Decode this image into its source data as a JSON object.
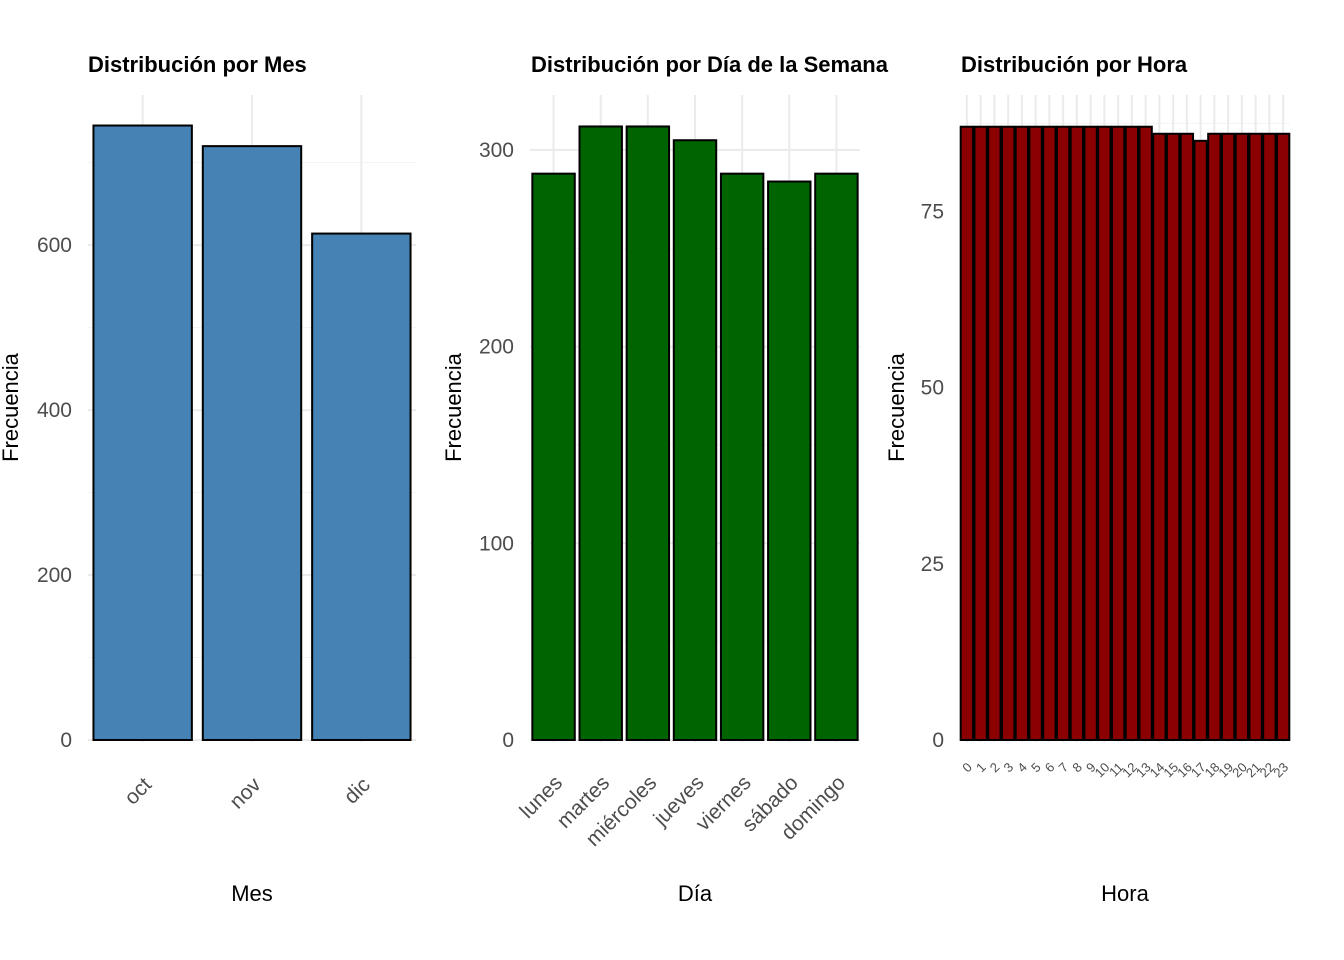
{
  "chart_data": [
    {
      "type": "bar",
      "title": "Distribución por Mes",
      "xlabel": "Mes",
      "ylabel": "Frecuencia",
      "categories": [
        "oct",
        "nov",
        "dic"
      ],
      "values": [
        745,
        720,
        614
      ],
      "ylim": [
        0,
        782
      ],
      "yticks": [
        0,
        200,
        400,
        600
      ],
      "ytick_labels": [
        "0",
        "200",
        "400",
        "600"
      ],
      "bar_color": "#4682B4",
      "x_label_rotation": "45",
      "grid": true,
      "legend": "none"
    },
    {
      "type": "bar",
      "title": "Distribución por Día de la Semana",
      "xlabel": "Día",
      "ylabel": "Frecuencia",
      "categories": [
        "lunes",
        "martes",
        "miércoles",
        "jueves",
        "viernes",
        "sábado",
        "domingo"
      ],
      "values": [
        288,
        312,
        312,
        305,
        288,
        284,
        288
      ],
      "ylim": [
        0,
        328
      ],
      "yticks": [
        0,
        100,
        200,
        300
      ],
      "ytick_labels": [
        "0",
        "100",
        "200",
        "300"
      ],
      "bar_color": "#006400",
      "x_label_rotation": "45",
      "grid": true,
      "legend": "none"
    },
    {
      "type": "bar",
      "title": "Distribución por Hora",
      "xlabel": "Hora",
      "ylabel": "Frecuencia",
      "categories": [
        "0",
        "1",
        "2",
        "3",
        "4",
        "5",
        "6",
        "7",
        "8",
        "9",
        "10",
        "11",
        "12",
        "13",
        "14",
        "15",
        "16",
        "17",
        "18",
        "19",
        "20",
        "21",
        "22",
        "23"
      ],
      "values": [
        87,
        87,
        87,
        87,
        87,
        87,
        87,
        87,
        87,
        87,
        87,
        87,
        87,
        87,
        86,
        86,
        86,
        85,
        86,
        86,
        86,
        86,
        86,
        86
      ],
      "ylim": [
        0,
        91.5
      ],
      "yticks": [
        0,
        25,
        50,
        75
      ],
      "ytick_labels": [
        "0",
        "25",
        "50",
        "75"
      ],
      "bar_color": "#8B0000",
      "x_label_rotation": "45",
      "grid": true,
      "legend": "none"
    }
  ]
}
